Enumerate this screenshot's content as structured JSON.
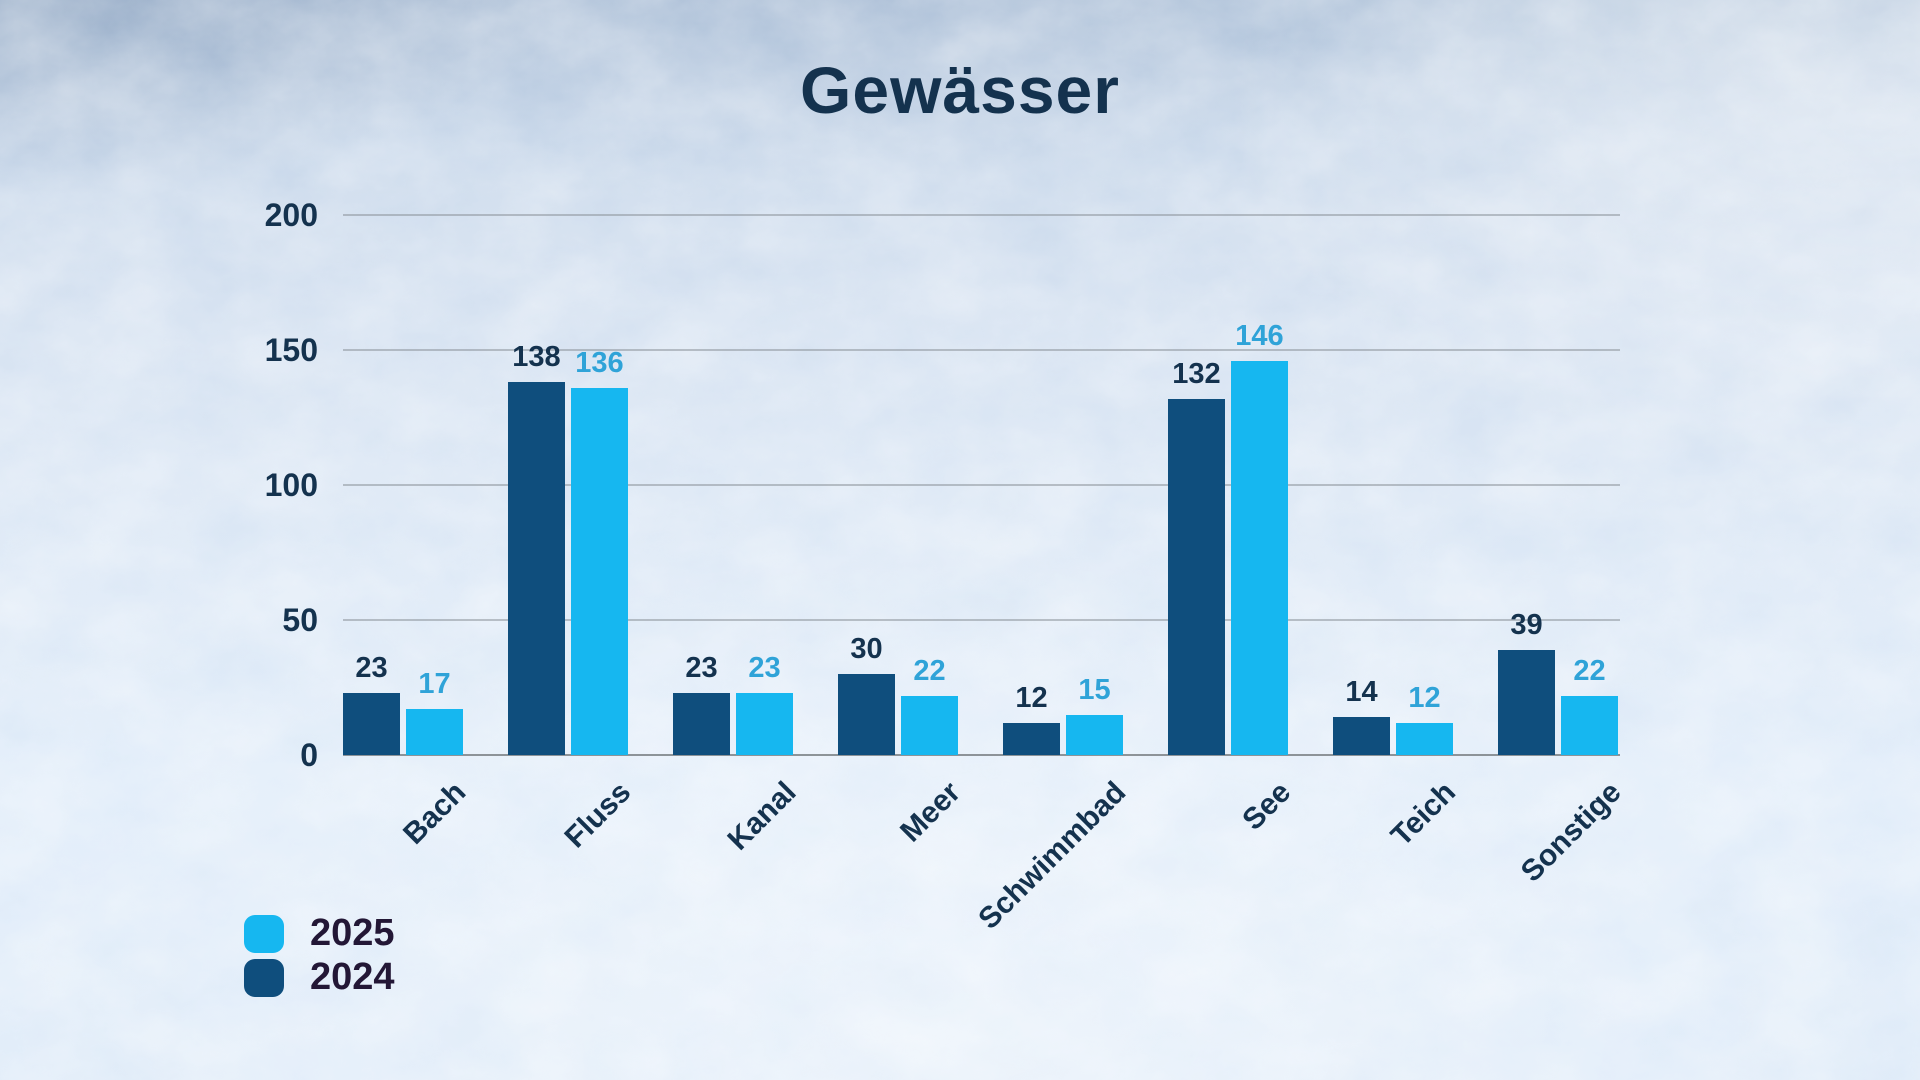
{
  "title": "Gewässer",
  "legend": {
    "items": [
      {
        "label": "2025",
        "color": "#16b7f0"
      },
      {
        "label": "2024",
        "color": "#0f4e7d"
      }
    ],
    "text_color": "#231736"
  },
  "colors": {
    "title_text": "#14324e",
    "axis_text": "#14324e",
    "gridline": "#8c939b",
    "series_2024_bar": "#0f4e7d",
    "series_2024_label": "#14324e",
    "series_2025_bar": "#16b7f0",
    "series_2025_label": "#2fa3d8"
  },
  "chart_data": {
    "type": "bar",
    "title": "Gewässer",
    "categories": [
      "Bach",
      "Fluss",
      "Kanal",
      "Meer",
      "Schwimmbad",
      "See",
      "Teich",
      "Sonstige"
    ],
    "series": [
      {
        "name": "2024",
        "color": "#0f4e7d",
        "label_color": "#14324e",
        "values": [
          23,
          138,
          23,
          30,
          12,
          132,
          14,
          39
        ]
      },
      {
        "name": "2025",
        "color": "#16b7f0",
        "label_color": "#2fa3d8",
        "values": [
          17,
          136,
          23,
          22,
          15,
          146,
          12,
          22
        ]
      }
    ],
    "xlabel": "",
    "ylabel": "",
    "ylim": [
      0,
      200
    ],
    "y_ticks": [
      0,
      50,
      100,
      150,
      200
    ],
    "grid": true,
    "data_labels": true,
    "legend_position": "bottom-left"
  }
}
